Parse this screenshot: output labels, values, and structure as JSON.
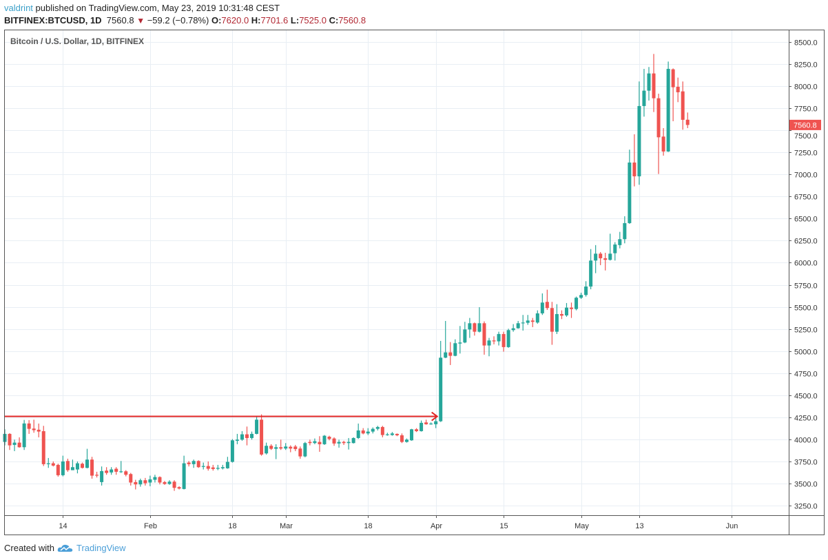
{
  "header": {
    "author": "valdrint",
    "published_text": " published on TradingView.com, May 23, 2019 10:31:48 CEST",
    "symbol": "BITFINEX:BTCUSD, 1D",
    "last": "7560.8",
    "change": "−59.2 (−0.78%)",
    "o_label": "O:",
    "o": "7620.0",
    "h_label": "H:",
    "h": "7701.6",
    "l_label": "L:",
    "l": "7525.0",
    "c_label": "C:",
    "c": "7560.8",
    "direction_icon": "triangle-down-icon"
  },
  "footer": {
    "created_with": "Created with",
    "brand": "TradingView",
    "logo_icon": "tradingview-cloud-icon"
  },
  "colors": {
    "up": "#26a69a",
    "down": "#ef5350",
    "annotation": "#e02424",
    "grid": "#e8eef4",
    "price_label_bg": "#ef5350"
  },
  "chart_data": {
    "type": "candlestick",
    "title": "Bitcoin / U.S. Dollar, 1D, BITFINEX",
    "ylim": [
      3125,
      8625
    ],
    "yticks": [
      "3250.0",
      "3500.0",
      "3750.0",
      "4000.0",
      "4250.0",
      "4500.0",
      "4750.0",
      "5000.0",
      "5250.0",
      "5500.0",
      "5750.0",
      "6000.0",
      "6250.0",
      "6500.0",
      "6750.0",
      "7000.0",
      "7250.0",
      "7500.0",
      "7750.0",
      "8000.0",
      "8250.0",
      "8500.0"
    ],
    "xticks": [
      {
        "label": "14",
        "date": "2019-01-14"
      },
      {
        "label": "Feb",
        "date": "2019-02-01"
      },
      {
        "label": "18",
        "date": "2019-02-18"
      },
      {
        "label": "Mar",
        "date": "2019-03-01"
      },
      {
        "label": "18",
        "date": "2019-03-18"
      },
      {
        "label": "Apr",
        "date": "2019-04-01"
      },
      {
        "label": "15",
        "date": "2019-04-15"
      },
      {
        "label": "May",
        "date": "2019-05-01"
      },
      {
        "label": "13",
        "date": "2019-05-13"
      },
      {
        "label": "Jun",
        "date": "2019-06-01"
      }
    ],
    "x_start": "2019-01-01",
    "x_end": "2019-06-13",
    "grid": true,
    "last_price_label": "7560.8",
    "annotations": [
      {
        "type": "horizontal-arrow",
        "price": 4260,
        "from": "2019-01-01",
        "to": "2019-04-01"
      }
    ],
    "candles_columns": [
      "date",
      "open",
      "high",
      "low",
      "close"
    ],
    "candles": [
      [
        "2019-01-02",
        3971,
        4114,
        3932,
        4062
      ],
      [
        "2019-01-03",
        4062,
        4070,
        3880,
        3932
      ],
      [
        "2019-01-04",
        3937,
        3997,
        3867,
        3963
      ],
      [
        "2019-01-05",
        3963,
        4023,
        3906,
        3911
      ],
      [
        "2019-01-06",
        3911,
        4220,
        3880,
        4180
      ],
      [
        "2019-01-07",
        4180,
        4218,
        4062,
        4119
      ],
      [
        "2019-01-08",
        4122,
        4223,
        4075,
        4104
      ],
      [
        "2019-01-09",
        4109,
        4179,
        4023,
        4088
      ],
      [
        "2019-01-10",
        4093,
        4153,
        3698,
        3719
      ],
      [
        "2019-01-11",
        3719,
        3789,
        3677,
        3729
      ],
      [
        "2019-01-12",
        3729,
        3750,
        3693,
        3703
      ],
      [
        "2019-01-13",
        3711,
        3724,
        3578,
        3594
      ],
      [
        "2019-01-14",
        3594,
        3815,
        3581,
        3750
      ],
      [
        "2019-01-15",
        3755,
        3781,
        3633,
        3651
      ],
      [
        "2019-01-16",
        3651,
        3771,
        3651,
        3685
      ],
      [
        "2019-01-17",
        3659,
        3750,
        3615,
        3729
      ],
      [
        "2019-01-18",
        3724,
        3737,
        3670,
        3677
      ],
      [
        "2019-01-19",
        3677,
        3893,
        3672,
        3771
      ],
      [
        "2019-01-20",
        3771,
        3802,
        3555,
        3589
      ],
      [
        "2019-01-21",
        3599,
        3633,
        3568,
        3589
      ],
      [
        "2019-01-22",
        3516,
        3693,
        3477,
        3641
      ],
      [
        "2019-01-23",
        3646,
        3685,
        3599,
        3620
      ],
      [
        "2019-01-24",
        3625,
        3685,
        3599,
        3659
      ],
      [
        "2019-01-25",
        3667,
        3685,
        3599,
        3633
      ],
      [
        "2019-01-26",
        3633,
        3755,
        3620,
        3638
      ],
      [
        "2019-01-27",
        3638,
        3651,
        3581,
        3599
      ],
      [
        "2019-01-28",
        3607,
        3620,
        3477,
        3511
      ],
      [
        "2019-01-29",
        3516,
        3542,
        3433,
        3490
      ],
      [
        "2019-01-30",
        3490,
        3555,
        3464,
        3537
      ],
      [
        "2019-01-31",
        3537,
        3563,
        3477,
        3503
      ],
      [
        "2019-02-01",
        3511,
        3589,
        3469,
        3547
      ],
      [
        "2019-02-02",
        3542,
        3599,
        3511,
        3573
      ],
      [
        "2019-02-03",
        3573,
        3581,
        3490,
        3511
      ],
      [
        "2019-02-04",
        3516,
        3529,
        3485,
        3495
      ],
      [
        "2019-02-05",
        3495,
        3537,
        3485,
        3521
      ],
      [
        "2019-02-06",
        3521,
        3537,
        3417,
        3451
      ],
      [
        "2019-02-07",
        3459,
        3469,
        3433,
        3443
      ],
      [
        "2019-02-08",
        3438,
        3815,
        3433,
        3729
      ],
      [
        "2019-02-09",
        3737,
        3755,
        3693,
        3719
      ],
      [
        "2019-02-10",
        3719,
        3771,
        3677,
        3755
      ],
      [
        "2019-02-11",
        3755,
        3763,
        3677,
        3685
      ],
      [
        "2019-02-12",
        3688,
        3737,
        3659,
        3698
      ],
      [
        "2019-02-13",
        3698,
        3750,
        3646,
        3667
      ],
      [
        "2019-02-14",
        3682,
        3711,
        3646,
        3664
      ],
      [
        "2019-02-15",
        3667,
        3711,
        3651,
        3677
      ],
      [
        "2019-02-16",
        3672,
        3711,
        3659,
        3685
      ],
      [
        "2019-02-17",
        3672,
        3802,
        3667,
        3745
      ],
      [
        "2019-02-18",
        3745,
        4003,
        3737,
        3989
      ],
      [
        "2019-02-19",
        3984,
        4062,
        3945,
        3997
      ],
      [
        "2019-02-20",
        3997,
        4093,
        3984,
        4057
      ],
      [
        "2019-02-21",
        4057,
        4145,
        3932,
        4015
      ],
      [
        "2019-02-22",
        4015,
        4088,
        3997,
        4062
      ],
      [
        "2019-02-23",
        4062,
        4257,
        4057,
        4223
      ],
      [
        "2019-02-24",
        4223,
        4283,
        3815,
        3828
      ],
      [
        "2019-02-25",
        3841,
        3963,
        3828,
        3927
      ],
      [
        "2019-02-26",
        3927,
        3945,
        3880,
        3893
      ],
      [
        "2019-02-27",
        3893,
        3945,
        3776,
        3911
      ],
      [
        "2019-02-28",
        3911,
        3997,
        3880,
        3896
      ],
      [
        "2019-03-01",
        3896,
        3958,
        3880,
        3919
      ],
      [
        "2019-03-02",
        3916,
        3932,
        3854,
        3896
      ],
      [
        "2019-03-03",
        3919,
        3937,
        3867,
        3890
      ],
      [
        "2019-03-04",
        3896,
        3919,
        3781,
        3807
      ],
      [
        "2019-03-05",
        3807,
        3971,
        3797,
        3958
      ],
      [
        "2019-03-06",
        3971,
        3997,
        3932,
        3958
      ],
      [
        "2019-03-07",
        3958,
        4010,
        3945,
        3979
      ],
      [
        "2019-03-08",
        3971,
        4036,
        3859,
        3945
      ],
      [
        "2019-03-09",
        3945,
        4049,
        3937,
        4041
      ],
      [
        "2019-03-10",
        4030,
        4041,
        3989,
        4004
      ],
      [
        "2019-03-11",
        4010,
        4023,
        3927,
        3953
      ],
      [
        "2019-03-12",
        3953,
        3997,
        3906,
        3971
      ],
      [
        "2019-03-13",
        3971,
        3984,
        3937,
        3958
      ],
      [
        "2019-03-14",
        3958,
        4015,
        3885,
        3971
      ],
      [
        "2019-03-15",
        3958,
        4023,
        3953,
        4015
      ],
      [
        "2019-03-16",
        4015,
        4179,
        4005,
        4101
      ],
      [
        "2019-03-17",
        4101,
        4127,
        4057,
        4067
      ],
      [
        "2019-03-18",
        4067,
        4127,
        4049,
        4088
      ],
      [
        "2019-03-19",
        4088,
        4135,
        4067,
        4119
      ],
      [
        "2019-03-20",
        4119,
        4153,
        4101,
        4140
      ],
      [
        "2019-03-21",
        4140,
        4153,
        4023,
        4049
      ],
      [
        "2019-03-22",
        4049,
        4075,
        4041,
        4057
      ],
      [
        "2019-03-23",
        4049,
        4083,
        4041,
        4067
      ],
      [
        "2019-03-24",
        4062,
        4067,
        4036,
        4046
      ],
      [
        "2019-03-25",
        4046,
        4067,
        3958,
        3971
      ],
      [
        "2019-03-26",
        3971,
        4010,
        3963,
        3997
      ],
      [
        "2019-03-27",
        3989,
        4119,
        3984,
        4114
      ],
      [
        "2019-03-28",
        4114,
        4127,
        4083,
        4093
      ],
      [
        "2019-03-29",
        4093,
        4213,
        4088,
        4187
      ],
      [
        "2019-03-30",
        4192,
        4223,
        4166,
        4171
      ],
      [
        "2019-03-31",
        4171,
        4192,
        4166,
        4179
      ],
      [
        "2019-04-01",
        4171,
        4239,
        4127,
        4205
      ],
      [
        "2019-04-02",
        4205,
        5115,
        4197,
        4925
      ],
      [
        "2019-04-03",
        4925,
        5341,
        4920,
        4985
      ],
      [
        "2019-04-04",
        4985,
        5102,
        4842,
        4946
      ],
      [
        "2019-04-05",
        4946,
        5133,
        4941,
        5089
      ],
      [
        "2019-04-06",
        5085,
        5284,
        4972,
        5097
      ],
      [
        "2019-04-07",
        5097,
        5331,
        5089,
        5245
      ],
      [
        "2019-04-08",
        5245,
        5375,
        5149,
        5315
      ],
      [
        "2019-04-09",
        5315,
        5323,
        5175,
        5219
      ],
      [
        "2019-04-10",
        5219,
        5497,
        5211,
        5315
      ],
      [
        "2019-04-11",
        5315,
        5336,
        4959,
        5063
      ],
      [
        "2019-04-12",
        5063,
        5149,
        4941,
        5120
      ],
      [
        "2019-04-13",
        5120,
        5167,
        5076,
        5110
      ],
      [
        "2019-04-14",
        5110,
        5219,
        5063,
        5193
      ],
      [
        "2019-04-15",
        5193,
        5219,
        4993,
        5045
      ],
      [
        "2019-04-16",
        5045,
        5253,
        5037,
        5237
      ],
      [
        "2019-04-17",
        5237,
        5305,
        5219,
        5258
      ],
      [
        "2019-04-18",
        5258,
        5341,
        5253,
        5315
      ],
      [
        "2019-04-19",
        5315,
        5409,
        5232,
        5323
      ],
      [
        "2019-04-20",
        5320,
        5409,
        5297,
        5346
      ],
      [
        "2019-04-21",
        5346,
        5375,
        5271,
        5331
      ],
      [
        "2019-04-22",
        5323,
        5461,
        5310,
        5427
      ],
      [
        "2019-04-23",
        5427,
        5653,
        5409,
        5549
      ],
      [
        "2019-04-24",
        5557,
        5695,
        5466,
        5487
      ],
      [
        "2019-04-25",
        5487,
        5557,
        5071,
        5219
      ],
      [
        "2019-04-26",
        5219,
        5531,
        5193,
        5419
      ],
      [
        "2019-04-27",
        5419,
        5461,
        5362,
        5401
      ],
      [
        "2019-04-28",
        5404,
        5544,
        5388,
        5492
      ],
      [
        "2019-04-29",
        5492,
        5549,
        5375,
        5476
      ],
      [
        "2019-04-30",
        5476,
        5617,
        5461,
        5604
      ],
      [
        "2019-05-01",
        5604,
        5661,
        5591,
        5635
      ],
      [
        "2019-05-02",
        5635,
        5791,
        5617,
        5731
      ],
      [
        "2019-05-03",
        5731,
        6155,
        5700,
        6025
      ],
      [
        "2019-05-04",
        6025,
        6200,
        5882,
        6103
      ],
      [
        "2019-05-05",
        6103,
        6121,
        5973,
        6051
      ],
      [
        "2019-05-06",
        6051,
        6113,
        5913,
        6033
      ],
      [
        "2019-05-07",
        6033,
        6329,
        6025,
        6103
      ],
      [
        "2019-05-08",
        6108,
        6233,
        6025,
        6207
      ],
      [
        "2019-05-09",
        6200,
        6350,
        6163,
        6267
      ],
      [
        "2019-05-10",
        6267,
        6527,
        6220,
        6449
      ],
      [
        "2019-05-11",
        6449,
        7281,
        6441,
        7135
      ],
      [
        "2019-05-12",
        7135,
        7455,
        6865,
        6979
      ],
      [
        "2019-05-13",
        6979,
        8053,
        6883,
        7775
      ],
      [
        "2019-05-14",
        7775,
        8196,
        7655,
        7949
      ],
      [
        "2019-05-15",
        7949,
        8217,
        7837,
        8144
      ],
      [
        "2019-05-16",
        8144,
        8365,
        7707,
        7863
      ],
      [
        "2019-05-17",
        7863,
        7915,
        7005,
        7421
      ],
      [
        "2019-05-18",
        7429,
        7525,
        7213,
        7260
      ],
      [
        "2019-05-19",
        7260,
        8279,
        7255,
        8196
      ],
      [
        "2019-05-20",
        8191,
        8201,
        7603,
        7988
      ],
      [
        "2019-05-21",
        7993,
        8097,
        7819,
        7931
      ],
      [
        "2019-05-22",
        7941,
        8053,
        7507,
        7619
      ],
      [
        "2019-05-23",
        7620,
        7701.6,
        7525,
        7560.8
      ]
    ]
  }
}
